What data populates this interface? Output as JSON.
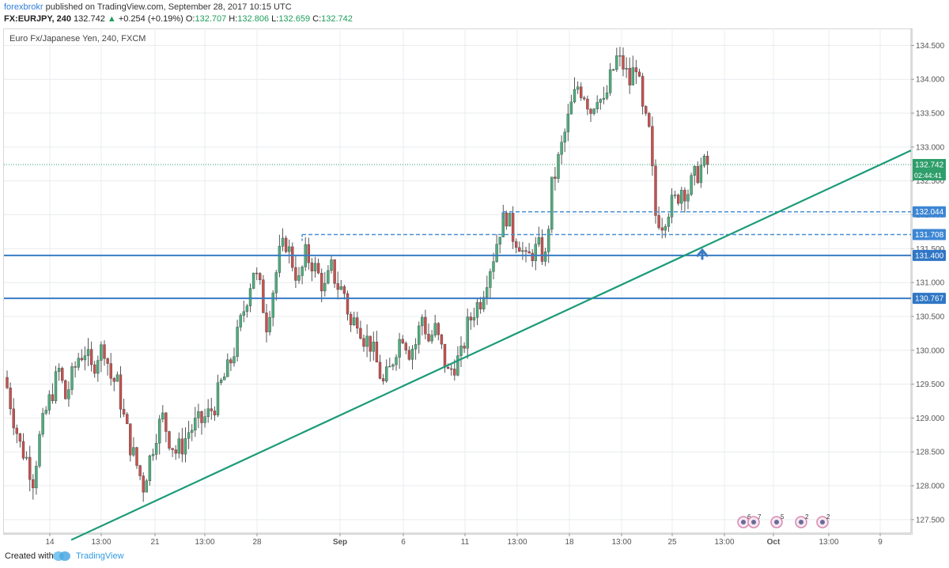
{
  "header": {
    "author": "forexbrokr",
    "published": " published on TradingView.com, September 28, 2017 10:15 UTC",
    "symbol": "FX:EURJPY, 240",
    "last": "132.742",
    "change": "+0.254 (+0.19%)",
    "o_label": "O:",
    "o_value": "132.707",
    "h_label": "H:",
    "h_value": "132.806",
    "l_label": "L:",
    "l_value": "132.659",
    "c_label": "C:",
    "c_value": "132.742"
  },
  "chart_title": "Euro Fx/Japanese Yen, 240, FXCM",
  "footer": {
    "created_with": "Created with",
    "brand": "TradingView"
  },
  "colors": {
    "up": "#4caf7d",
    "down": "#c8504f",
    "hline": "#3a7cc4",
    "dashed": "#4a8fd4",
    "trend": "#1b9b78",
    "grid": "#e8ecef",
    "lastprice": "#2e9e6a"
  },
  "events": [
    "6",
    "7",
    "5",
    "2",
    "2"
  ],
  "chart_data": {
    "type": "candlestick",
    "yticks": [
      "127.500",
      "128.000",
      "128.500",
      "129.000",
      "129.500",
      "130.000",
      "130.500",
      "131.000",
      "131.500",
      "132.000",
      "132.500",
      "133.000",
      "133.500",
      "134.000",
      "134.500"
    ],
    "xticks": [
      "14",
      "13:00",
      "21",
      "13:00",
      "28",
      "Sep",
      "6",
      "11",
      "13:00",
      "18",
      "13:00",
      "25",
      "13:00",
      "Oct",
      "13:00",
      "9"
    ],
    "ylim": [
      127.3,
      134.75
    ],
    "last_price": "132.742",
    "countdown": "02:44:41",
    "levels": [
      {
        "label": "131.400",
        "value": 131.4,
        "style": "solid"
      },
      {
        "label": "130.767",
        "value": 130.767,
        "style": "solid"
      },
      {
        "label": "132.044",
        "value": 132.044,
        "style": "dashed"
      },
      {
        "label": "131.708",
        "value": 131.708,
        "style": "dashed"
      }
    ],
    "trendline": [
      {
        "bar": 20,
        "value": 127.2
      },
      {
        "bar": 271,
        "value": 132.95
      }
    ],
    "arrow": {
      "bar": 206,
      "value": 131.42
    },
    "closes": [
      129.45,
      129.0,
      128.6,
      128.4,
      128.1,
      128.7,
      129.1,
      129.4,
      129.7,
      129.3,
      129.6,
      129.9,
      130.0,
      129.7,
      129.95,
      130.05,
      129.6,
      129.5,
      129.0,
      128.6,
      128.3,
      128.0,
      128.4,
      128.8,
      129.0,
      128.7,
      128.5,
      128.6,
      128.8,
      128.9,
      128.95,
      129.05,
      129.2,
      129.5,
      129.7,
      130.0,
      130.4,
      130.8,
      131.2,
      130.9,
      130.4,
      130.9,
      131.4,
      131.6,
      131.3,
      131.0,
      131.4,
      131.3,
      131.1,
      130.9,
      131.2,
      130.95,
      130.85,
      130.35,
      130.5,
      130.2,
      130.1,
      129.8,
      129.5,
      129.7,
      130.05,
      130.25,
      130.0,
      130.1,
      130.5,
      130.15,
      130.3,
      130.0,
      129.65,
      129.8,
      129.9,
      130.35,
      130.6,
      130.75,
      131.1,
      131.4,
      131.8,
      132.0,
      131.7,
      131.6,
      131.3,
      131.45,
      131.5,
      131.35,
      132.4,
      132.8,
      133.2,
      133.6,
      133.9,
      133.8,
      133.55,
      133.8,
      133.6,
      134.0,
      134.3,
      134.2,
      133.95,
      134.25,
      133.5,
      133.2,
      132.0,
      131.9,
      132.1,
      132.2,
      132.4,
      132.35,
      132.55,
      132.7,
      132.74
    ],
    "counts": [
      9,
      2,
      5,
      5,
      2,
      6,
      6,
      5,
      5,
      5,
      5,
      5,
      5,
      5,
      5,
      5,
      5,
      5,
      5,
      5,
      5,
      5,
      5,
      5,
      5,
      5,
      5,
      5,
      5,
      5,
      5,
      5,
      5,
      5,
      5,
      5,
      5,
      5,
      5,
      5,
      5,
      5,
      5,
      5,
      5,
      5,
      5,
      5,
      5,
      5,
      5,
      5,
      5,
      5,
      5,
      5,
      5,
      5,
      5,
      5,
      5,
      5,
      5,
      5,
      5,
      5,
      5,
      5,
      5,
      5,
      5,
      5,
      5,
      5,
      5,
      5,
      5,
      5,
      5,
      5,
      5,
      5,
      5,
      5,
      5,
      5,
      5,
      5,
      5,
      5,
      5,
      5,
      5,
      5,
      5,
      5,
      5,
      5,
      5,
      5,
      5,
      5,
      5,
      5,
      5,
      5,
      5,
      5,
      5
    ],
    "window_bars": {
      "bar_offset": 0
    }
  }
}
